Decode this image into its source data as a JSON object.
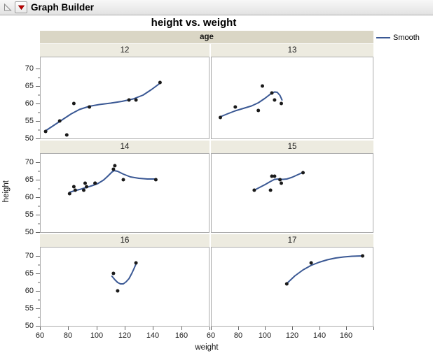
{
  "window": {
    "title": "Graph Builder"
  },
  "chart_data": {
    "type": "scatter",
    "title": "height vs. weight",
    "xlabel": "weight",
    "ylabel": "height",
    "facet_variable": "age",
    "legend_label": "Smooth",
    "legend_position": "top-right",
    "grid": {
      "rows": 3,
      "cols": 2,
      "grid_lines": false
    },
    "xlim": [
      60,
      180
    ],
    "ylim": [
      50,
      72.6
    ],
    "x_ticks": [
      60,
      80,
      100,
      120,
      140,
      160
    ],
    "y_ticks": [
      50,
      55,
      60,
      65,
      70
    ],
    "y_minor_ticks": [
      52.5,
      57.5,
      62.5,
      67.5
    ],
    "point_color": "#1A1A1A",
    "smoother_color": "#3A5894",
    "facets": [
      {
        "label": "12",
        "points": [
          [
            64,
            52
          ],
          [
            74,
            55
          ],
          [
            79,
            51
          ],
          [
            84,
            60
          ],
          [
            95,
            59
          ],
          [
            123,
            61
          ],
          [
            128,
            61
          ],
          [
            145,
            66
          ]
        ],
        "smooth": [
          [
            64,
            52.2
          ],
          [
            70,
            53.8
          ],
          [
            76,
            55.4
          ],
          [
            82,
            57.0
          ],
          [
            88,
            58.3
          ],
          [
            95,
            59.2
          ],
          [
            102,
            59.7
          ],
          [
            110,
            60.1
          ],
          [
            118,
            60.6
          ],
          [
            126,
            61.3
          ],
          [
            133,
            62.4
          ],
          [
            139,
            64.0
          ],
          [
            145,
            65.8
          ]
        ]
      },
      {
        "label": "13",
        "points": [
          [
            67,
            56
          ],
          [
            78,
            59
          ],
          [
            95,
            58
          ],
          [
            98,
            65
          ],
          [
            105,
            63
          ],
          [
            107,
            61
          ],
          [
            112,
            60
          ]
        ],
        "smooth": [
          [
            67,
            56.2
          ],
          [
            72,
            57.0
          ],
          [
            78,
            57.9
          ],
          [
            84,
            58.6
          ],
          [
            90,
            59.3
          ],
          [
            95,
            60.2
          ],
          [
            100,
            61.5
          ],
          [
            104,
            62.7
          ],
          [
            107,
            63.3
          ],
          [
            109,
            63.2
          ],
          [
            111,
            62.3
          ],
          [
            112.5,
            61.0
          ]
        ]
      },
      {
        "label": "14",
        "points": [
          [
            81,
            61
          ],
          [
            84,
            63
          ],
          [
            85,
            62
          ],
          [
            91,
            62
          ],
          [
            92,
            64
          ],
          [
            93,
            63
          ],
          [
            99,
            64
          ],
          [
            99,
            64
          ],
          [
            112,
            68
          ],
          [
            113,
            69
          ],
          [
            119,
            65
          ],
          [
            142,
            65
          ]
        ],
        "smooth": [
          [
            81,
            61.4
          ],
          [
            85,
            61.9
          ],
          [
            89,
            62.3
          ],
          [
            93,
            62.8
          ],
          [
            97,
            63.3
          ],
          [
            101,
            63.9
          ],
          [
            105,
            64.9
          ],
          [
            108,
            66.0
          ],
          [
            111,
            67.2
          ],
          [
            112.5,
            67.6
          ],
          [
            115,
            67.4
          ],
          [
            119,
            66.6
          ],
          [
            124,
            65.8
          ],
          [
            130,
            65.4
          ],
          [
            136,
            65.2
          ],
          [
            142,
            65.2
          ]
        ]
      },
      {
        "label": "15",
        "points": [
          [
            92,
            62
          ],
          [
            104,
            62
          ],
          [
            105,
            66
          ],
          [
            107,
            66
          ],
          [
            111,
            65
          ],
          [
            112,
            64
          ],
          [
            128,
            67
          ]
        ],
        "smooth": [
          [
            92,
            62.0
          ],
          [
            96,
            62.8
          ],
          [
            100,
            63.6
          ],
          [
            104,
            64.5
          ],
          [
            107,
            65.1
          ],
          [
            110,
            65.2
          ],
          [
            113,
            65.1
          ],
          [
            116,
            65.2
          ],
          [
            120,
            65.7
          ],
          [
            124,
            66.4
          ],
          [
            128,
            67.1
          ]
        ]
      },
      {
        "label": "16",
        "points": [
          [
            112,
            65
          ],
          [
            115,
            60
          ],
          [
            128,
            68
          ]
        ],
        "smooth": [
          [
            111,
            64.2
          ],
          [
            113,
            63.2
          ],
          [
            115,
            62.4
          ],
          [
            117,
            62.0
          ],
          [
            119,
            62.0
          ],
          [
            121,
            62.6
          ],
          [
            123,
            63.5
          ],
          [
            125,
            65.0
          ],
          [
            126.5,
            66.3
          ],
          [
            128,
            67.7
          ]
        ]
      },
      {
        "label": "17",
        "points": [
          [
            116,
            62
          ],
          [
            134,
            68
          ],
          [
            172,
            70
          ]
        ],
        "smooth": [
          [
            116,
            62.1
          ],
          [
            122,
            64.3
          ],
          [
            128,
            66.0
          ],
          [
            134,
            67.3
          ],
          [
            140,
            68.2
          ],
          [
            146,
            68.9
          ],
          [
            152,
            69.4
          ],
          [
            158,
            69.7
          ],
          [
            164,
            69.9
          ],
          [
            172,
            70.0
          ]
        ]
      }
    ]
  },
  "colors": {
    "facet_band": "#DAD6C5",
    "facet_strip": "#EDEBE0",
    "red_triangle": "#C00000",
    "tick": "#666666",
    "panel_border": "#ACACAC"
  }
}
